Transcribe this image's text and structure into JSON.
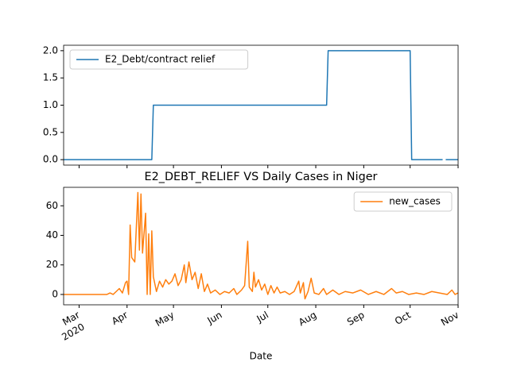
{
  "chart_data": [
    {
      "type": "line",
      "x": [
        "2020-02-20",
        "2020-04-17",
        "2020-04-18",
        "2020-08-08",
        "2020-08-09",
        "2020-10-01",
        "2020-10-02",
        "2020-10-22",
        "2020-10-23",
        "2020-10-24",
        "2020-11-01"
      ],
      "series": [
        {
          "name": "E2_Debt/contract relief",
          "color": "#1f77b4",
          "values": [
            0,
            0,
            1,
            1,
            2,
            2,
            0,
            0,
            null,
            0,
            0
          ]
        }
      ],
      "xlim": [
        "2020-02-20",
        "2020-11-01"
      ],
      "xticks": [
        "2020-03-01",
        "2020-04-01",
        "2020-05-01",
        "2020-06-01",
        "2020-07-01",
        "2020-08-01",
        "2020-09-01",
        "2020-10-01",
        "2020-11-01"
      ],
      "ylim": [
        -0.1,
        2.1
      ],
      "yticks": [
        {
          "value": 0,
          "label": "0.0"
        },
        0.5,
        {
          "value": 1,
          "label": "1.0"
        },
        1.5,
        {
          "value": 2,
          "label": "2.0"
        }
      ],
      "legend": "upper left"
    },
    {
      "type": "line",
      "title": "E2_DEBT_RELIEF VS Daily Cases in Niger",
      "x_label": "Date",
      "x": [
        "2020-02-20",
        "2020-03-19",
        "2020-03-21",
        "2020-03-23",
        "2020-03-25",
        "2020-03-27",
        "2020-03-29",
        "2020-03-31",
        "2020-04-01",
        "2020-04-02",
        "2020-04-03",
        "2020-04-04",
        "2020-04-06",
        "2020-04-08",
        "2020-04-09",
        "2020-04-10",
        "2020-04-11",
        "2020-04-13",
        "2020-04-14",
        "2020-04-15",
        "2020-04-16",
        "2020-04-17",
        "2020-04-18",
        "2020-04-20",
        "2020-04-22",
        "2020-04-24",
        "2020-04-26",
        "2020-04-28",
        "2020-04-30",
        "2020-05-02",
        "2020-05-04",
        "2020-05-06",
        "2020-05-08",
        "2020-05-09",
        "2020-05-11",
        "2020-05-13",
        "2020-05-15",
        "2020-05-17",
        "2020-05-19",
        "2020-05-21",
        "2020-05-23",
        "2020-05-25",
        "2020-05-28",
        "2020-05-31",
        "2020-06-03",
        "2020-06-06",
        "2020-06-09",
        "2020-06-11",
        "2020-06-14",
        "2020-06-16",
        "2020-06-18",
        "2020-06-19",
        "2020-06-21",
        "2020-06-22",
        "2020-06-23",
        "2020-06-25",
        "2020-06-27",
        "2020-06-29",
        "2020-07-01",
        "2020-07-03",
        "2020-07-05",
        "2020-07-07",
        "2020-07-09",
        "2020-07-12",
        "2020-07-15",
        "2020-07-18",
        "2020-07-21",
        "2020-07-22",
        "2020-07-24",
        "2020-07-25",
        "2020-07-27",
        "2020-07-29",
        "2020-07-31",
        "2020-08-03",
        "2020-08-06",
        "2020-08-08",
        "2020-08-12",
        "2020-08-16",
        "2020-08-20",
        "2020-08-25",
        "2020-08-30",
        "2020-09-04",
        "2020-09-09",
        "2020-09-14",
        "2020-09-19",
        "2020-09-22",
        "2020-09-26",
        "2020-09-30",
        "2020-10-05",
        "2020-10-10",
        "2020-10-15",
        "2020-10-20",
        "2020-10-25",
        "2020-10-28",
        "2020-10-30",
        "2020-11-01"
      ],
      "series": [
        {
          "name": "new_cases",
          "color": "#ff7f0e",
          "values": [
            0,
            0,
            1,
            0,
            2,
            4,
            1,
            8,
            9,
            0,
            47,
            25,
            22,
            69,
            30,
            68,
            28,
            55,
            0,
            41,
            0,
            43,
            12,
            2,
            9,
            5,
            10,
            7,
            9,
            14,
            6,
            10,
            20,
            8,
            22,
            10,
            15,
            4,
            14,
            2,
            7,
            1,
            3,
            0,
            2,
            1,
            4,
            0,
            3,
            6,
            36,
            5,
            2,
            15,
            5,
            10,
            3,
            7,
            0,
            6,
            1,
            5,
            1,
            2,
            0,
            2,
            9,
            1,
            8,
            -3,
            2,
            11,
            1,
            0,
            4,
            0,
            3,
            0,
            2,
            1,
            3,
            0,
            2,
            0,
            4,
            1,
            2,
            0,
            1,
            0,
            2,
            1,
            0,
            3,
            0,
            1
          ]
        }
      ],
      "xlim": [
        "2020-02-20",
        "2020-11-01"
      ],
      "xticks": [
        {
          "value": "2020-03-01",
          "label": "Mar"
        },
        {
          "value": "2020-04-01",
          "label": "Apr"
        },
        {
          "value": "2020-05-01",
          "label": "May"
        },
        {
          "value": "2020-06-01",
          "label": "Jun"
        },
        {
          "value": "2020-07-01",
          "label": "Jul"
        },
        {
          "value": "2020-08-01",
          "label": "Aug"
        },
        {
          "value": "2020-09-01",
          "label": "Sep"
        },
        {
          "value": "2020-10-01",
          "label": "Oct"
        },
        {
          "value": "2020-11-01",
          "label": "Nov"
        }
      ],
      "year_label": "2020",
      "ylim": [
        -7,
        72.5
      ],
      "yticks": [
        0,
        20,
        40,
        60
      ],
      "legend": "upper right"
    }
  ]
}
